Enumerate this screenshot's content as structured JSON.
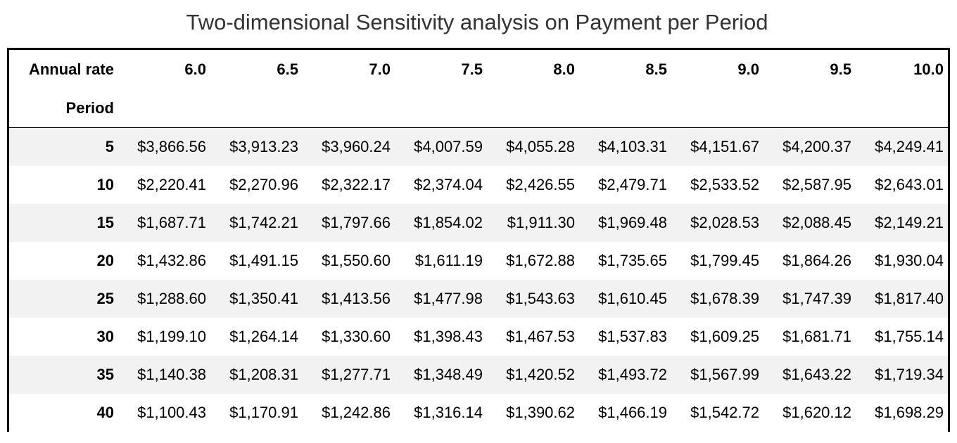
{
  "title": "Two-dimensional Sensitivity analysis on Payment per Period",
  "table": {
    "column_axis_label": "Annual rate",
    "row_axis_label": "Period",
    "columns": [
      "6.0",
      "6.5",
      "7.0",
      "7.5",
      "8.0",
      "8.5",
      "9.0",
      "9.5",
      "10.0"
    ],
    "rows": [
      {
        "label": "5",
        "cells": [
          "$3,866.56",
          "$3,913.23",
          "$3,960.24",
          "$4,007.59",
          "$4,055.28",
          "$4,103.31",
          "$4,151.67",
          "$4,200.37",
          "$4,249.41"
        ]
      },
      {
        "label": "10",
        "cells": [
          "$2,220.41",
          "$2,270.96",
          "$2,322.17",
          "$2,374.04",
          "$2,426.55",
          "$2,479.71",
          "$2,533.52",
          "$2,587.95",
          "$2,643.01"
        ]
      },
      {
        "label": "15",
        "cells": [
          "$1,687.71",
          "$1,742.21",
          "$1,797.66",
          "$1,854.02",
          "$1,911.30",
          "$1,969.48",
          "$2,028.53",
          "$2,088.45",
          "$2,149.21"
        ]
      },
      {
        "label": "20",
        "cells": [
          "$1,432.86",
          "$1,491.15",
          "$1,550.60",
          "$1,611.19",
          "$1,672.88",
          "$1,735.65",
          "$1,799.45",
          "$1,864.26",
          "$1,930.04"
        ]
      },
      {
        "label": "25",
        "cells": [
          "$1,288.60",
          "$1,350.41",
          "$1,413.56",
          "$1,477.98",
          "$1,543.63",
          "$1,610.45",
          "$1,678.39",
          "$1,747.39",
          "$1,817.40"
        ]
      },
      {
        "label": "30",
        "cells": [
          "$1,199.10",
          "$1,264.14",
          "$1,330.60",
          "$1,398.43",
          "$1,467.53",
          "$1,537.83",
          "$1,609.25",
          "$1,681.71",
          "$1,755.14"
        ]
      },
      {
        "label": "35",
        "cells": [
          "$1,140.38",
          "$1,208.31",
          "$1,277.71",
          "$1,348.49",
          "$1,420.52",
          "$1,493.72",
          "$1,567.99",
          "$1,643.22",
          "$1,719.34"
        ]
      },
      {
        "label": "40",
        "cells": [
          "$1,100.43",
          "$1,170.91",
          "$1,242.86",
          "$1,316.14",
          "$1,390.62",
          "$1,466.19",
          "$1,542.72",
          "$1,620.12",
          "$1,698.29"
        ]
      }
    ]
  }
}
